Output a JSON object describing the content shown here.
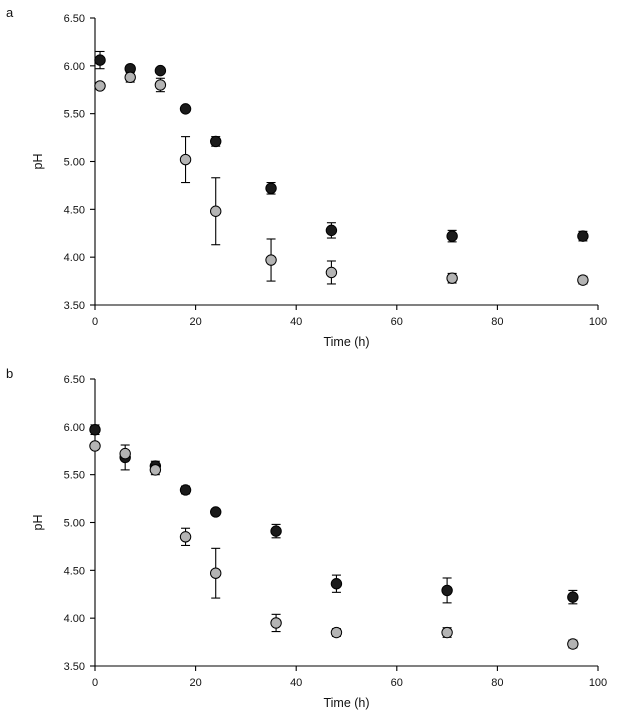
{
  "figure": {
    "background": "#ffffff",
    "axis_color": "#000000",
    "text_color": "#111111"
  },
  "chart_data": [
    {
      "type": "scatter",
      "panel_label": "a",
      "title": "",
      "xlabel": "Time (h)",
      "ylabel": "pH",
      "xlim": [
        0,
        100
      ],
      "ylim": [
        3.5,
        6.5
      ],
      "grid": false,
      "legend": "none",
      "axis_color": "#000000",
      "xticks": [
        {
          "value": 0,
          "label": "0"
        },
        {
          "value": 20,
          "label": "20"
        },
        {
          "value": 40,
          "label": "40"
        },
        {
          "value": 60,
          "label": "60"
        },
        {
          "value": 80,
          "label": "80"
        },
        {
          "value": 100,
          "label": "100"
        }
      ],
      "yticks": [
        {
          "value": 3.5,
          "label": "3.50"
        },
        {
          "value": 4.0,
          "label": "4.00"
        },
        {
          "value": 4.5,
          "label": "4.50"
        },
        {
          "value": 5.0,
          "label": "5.00"
        },
        {
          "value": 5.5,
          "label": "5.50"
        },
        {
          "value": 6.0,
          "label": "6.00"
        },
        {
          "value": 6.5,
          "label": "6.50"
        }
      ],
      "series": [
        {
          "name": "black-circles",
          "marker": "circle",
          "fill": "#1a1a1a",
          "stroke": "#000000",
          "points": [
            {
              "x": 1,
              "y": 6.06,
              "err": 0.09
            },
            {
              "x": 7,
              "y": 5.97,
              "err": 0.03
            },
            {
              "x": 13,
              "y": 5.95,
              "err": 0.03
            },
            {
              "x": 18,
              "y": 5.55,
              "err": 0.03
            },
            {
              "x": 24,
              "y": 5.21,
              "err": 0.05
            },
            {
              "x": 35,
              "y": 4.72,
              "err": 0.06
            },
            {
              "x": 47,
              "y": 4.28,
              "err": 0.08
            },
            {
              "x": 71,
              "y": 4.22,
              "err": 0.06
            },
            {
              "x": 97,
              "y": 4.22,
              "err": 0.05
            }
          ]
        },
        {
          "name": "gray-circles",
          "marker": "circle",
          "fill": "#b4b4b4",
          "stroke": "#000000",
          "points": [
            {
              "x": 1,
              "y": 5.79,
              "err": 0.03
            },
            {
              "x": 7,
              "y": 5.88,
              "err": 0.05
            },
            {
              "x": 13,
              "y": 5.8,
              "err": 0.07
            },
            {
              "x": 18,
              "y": 5.02,
              "err": 0.24
            },
            {
              "x": 24,
              "y": 4.48,
              "err": 0.35
            },
            {
              "x": 35,
              "y": 3.97,
              "err": 0.22
            },
            {
              "x": 47,
              "y": 3.84,
              "err": 0.12
            },
            {
              "x": 71,
              "y": 3.78,
              "err": 0.05
            },
            {
              "x": 97,
              "y": 3.76,
              "err": 0.04
            }
          ]
        }
      ]
    },
    {
      "type": "scatter",
      "panel_label": "b",
      "title": "",
      "xlabel": "Time (h)",
      "ylabel": "pH",
      "xlim": [
        0,
        100
      ],
      "ylim": [
        3.5,
        6.5
      ],
      "grid": false,
      "legend": "none",
      "axis_color": "#000000",
      "xticks": [
        {
          "value": 0,
          "label": "0"
        },
        {
          "value": 20,
          "label": "20"
        },
        {
          "value": 40,
          "label": "40"
        },
        {
          "value": 60,
          "label": "60"
        },
        {
          "value": 80,
          "label": "80"
        },
        {
          "value": 100,
          "label": "100"
        }
      ],
      "yticks": [
        {
          "value": 3.5,
          "label": "3.50"
        },
        {
          "value": 4.0,
          "label": "4.00"
        },
        {
          "value": 4.5,
          "label": "4.50"
        },
        {
          "value": 5.0,
          "label": "5.00"
        },
        {
          "value": 5.5,
          "label": "5.50"
        },
        {
          "value": 6.0,
          "label": "6.00"
        },
        {
          "value": 6.5,
          "label": "6.50"
        }
      ],
      "series": [
        {
          "name": "black-circles",
          "marker": "circle",
          "fill": "#1a1a1a",
          "stroke": "#000000",
          "points": [
            {
              "x": 0,
              "y": 5.97,
              "err": 0.05
            },
            {
              "x": 6,
              "y": 5.68,
              "err": 0.13
            },
            {
              "x": 12,
              "y": 5.59,
              "err": 0.05
            },
            {
              "x": 18,
              "y": 5.34,
              "err": 0.04
            },
            {
              "x": 24,
              "y": 5.11,
              "err": 0.03
            },
            {
              "x": 36,
              "y": 4.91,
              "err": 0.07
            },
            {
              "x": 48,
              "y": 4.36,
              "err": 0.09
            },
            {
              "x": 70,
              "y": 4.29,
              "err": 0.13
            },
            {
              "x": 95,
              "y": 4.22,
              "err": 0.07
            }
          ]
        },
        {
          "name": "gray-circles",
          "marker": "circle",
          "fill": "#b4b4b4",
          "stroke": "#000000",
          "points": [
            {
              "x": 0,
              "y": 5.8,
              "err": 0.03
            },
            {
              "x": 6,
              "y": 5.72,
              "err": 0.03
            },
            {
              "x": 12,
              "y": 5.55,
              "err": 0.05
            },
            {
              "x": 18,
              "y": 4.85,
              "err": 0.09
            },
            {
              "x": 24,
              "y": 4.47,
              "err": 0.26
            },
            {
              "x": 36,
              "y": 3.95,
              "err": 0.09
            },
            {
              "x": 48,
              "y": 3.85,
              "err": 0.04
            },
            {
              "x": 70,
              "y": 3.85,
              "err": 0.05
            },
            {
              "x": 95,
              "y": 3.73,
              "err": 0.04
            }
          ]
        }
      ]
    }
  ]
}
